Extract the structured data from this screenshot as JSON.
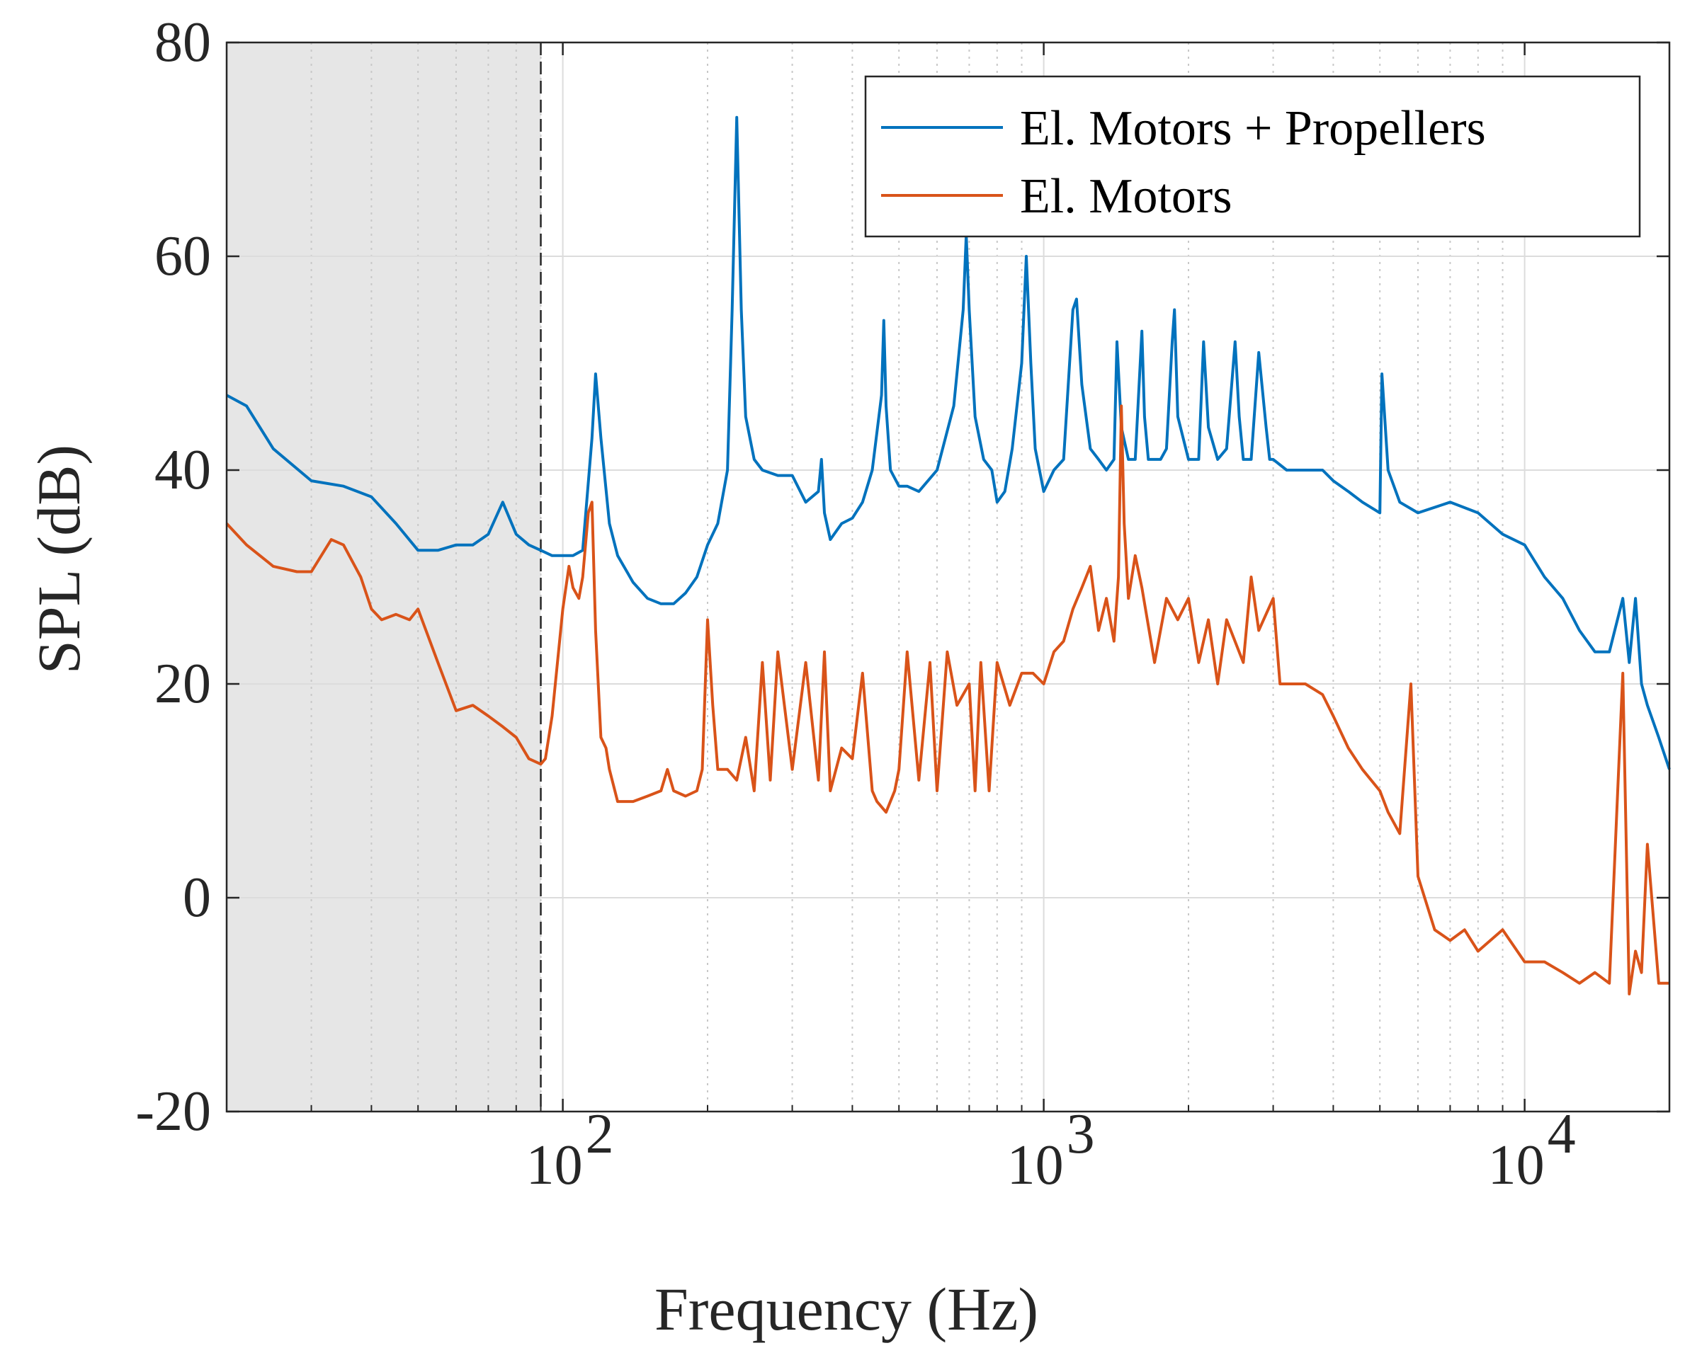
{
  "chart_data": {
    "type": "line",
    "title": "",
    "xlabel": "Frequency (Hz)",
    "ylabel": "SPL (dB)",
    "xscale": "log",
    "xlim": [
      20,
      20000
    ],
    "ylim": [
      -20,
      80
    ],
    "yticks": [
      -20,
      0,
      20,
      40,
      60,
      80
    ],
    "ytick_labels": [
      "-20",
      "0",
      "20",
      "40",
      "60",
      "80"
    ],
    "xticks": [
      {
        "value": 100,
        "base": "10",
        "exp": "2"
      },
      {
        "value": 1000,
        "base": "10",
        "exp": "3"
      },
      {
        "value": 10000,
        "base": "10",
        "exp": "4"
      }
    ],
    "grid": true,
    "shaded_region": {
      "x_from": 20,
      "x_to": 90,
      "color": "#e6e6e6",
      "boundary_style": "dashed"
    },
    "legend": {
      "location": "top-right"
    },
    "series": [
      {
        "name": "El. Motors + Propellers",
        "color": "#0072BD",
        "x": [
          20,
          22,
          25,
          30,
          35,
          40,
          45,
          50,
          55,
          60,
          65,
          70,
          75,
          80,
          85,
          90,
          95,
          100,
          105,
          110,
          115,
          117,
          120,
          125,
          130,
          140,
          150,
          160,
          170,
          180,
          190,
          200,
          210,
          220,
          225,
          230,
          235,
          240,
          250,
          260,
          280,
          300,
          320,
          340,
          345,
          350,
          360,
          380,
          400,
          420,
          440,
          460,
          465,
          470,
          480,
          500,
          520,
          550,
          600,
          650,
          680,
          690,
          700,
          720,
          750,
          780,
          800,
          830,
          860,
          900,
          920,
          940,
          960,
          1000,
          1050,
          1100,
          1150,
          1170,
          1200,
          1250,
          1300,
          1350,
          1400,
          1420,
          1450,
          1500,
          1550,
          1600,
          1620,
          1650,
          1700,
          1750,
          1800,
          1850,
          1870,
          1900,
          2000,
          2100,
          2150,
          2200,
          2300,
          2400,
          2500,
          2550,
          2600,
          2700,
          2800,
          2900,
          2950,
          3000,
          3200,
          3500,
          3800,
          4000,
          4300,
          4600,
          5000,
          5050,
          5200,
          5500,
          6000,
          7000,
          8000,
          9000,
          10000,
          11000,
          12000,
          13000,
          14000,
          15000,
          16000,
          16500,
          17000,
          17500,
          18000,
          19000,
          20000
        ],
        "y": [
          47,
          46,
          42,
          39,
          38.5,
          37.5,
          35,
          32.5,
          32.5,
          33,
          33,
          34,
          37,
          34,
          33,
          32.5,
          32,
          32,
          32,
          32.5,
          43,
          49,
          43,
          35,
          32,
          29.5,
          28,
          27.5,
          27.5,
          28.5,
          30,
          33,
          35,
          40,
          55,
          73,
          55,
          45,
          41,
          40,
          39.5,
          39.5,
          37,
          38,
          41,
          36,
          33.5,
          35,
          35.5,
          37,
          40,
          47,
          54,
          46,
          40,
          38.5,
          38.5,
          38,
          40,
          46,
          55,
          62,
          55,
          45,
          41,
          40,
          37,
          38,
          42,
          50,
          60,
          50,
          42,
          38,
          40,
          41,
          55,
          56,
          48,
          42,
          41,
          40,
          41,
          52,
          44,
          41,
          41,
          53,
          45,
          41,
          41,
          41,
          42,
          52,
          55,
          45,
          41,
          41,
          52,
          44,
          41,
          42,
          52,
          45,
          41,
          41,
          51,
          44,
          41,
          41,
          40,
          40,
          40,
          39,
          38,
          37,
          36,
          49,
          40,
          37,
          36,
          37,
          36,
          34,
          33,
          30,
          28,
          25,
          23,
          23,
          28,
          22,
          28,
          20,
          18,
          15,
          12
        ]
      },
      {
        "name": "El. Motors",
        "color": "#D95319",
        "x": [
          20,
          22,
          25,
          28,
          30,
          33,
          35,
          38,
          40,
          42,
          45,
          48,
          50,
          55,
          60,
          65,
          70,
          75,
          80,
          85,
          90,
          92,
          95,
          100,
          103,
          105,
          108,
          110,
          113,
          115,
          117,
          120,
          123,
          125,
          130,
          135,
          140,
          150,
          160,
          165,
          170,
          180,
          190,
          195,
          200,
          205,
          210,
          220,
          230,
          240,
          250,
          260,
          270,
          280,
          300,
          320,
          340,
          350,
          360,
          380,
          400,
          420,
          440,
          450,
          470,
          490,
          500,
          520,
          550,
          580,
          600,
          630,
          660,
          700,
          720,
          740,
          770,
          800,
          850,
          900,
          950,
          1000,
          1050,
          1100,
          1150,
          1200,
          1250,
          1300,
          1350,
          1400,
          1430,
          1450,
          1470,
          1500,
          1550,
          1600,
          1700,
          1800,
          1900,
          2000,
          2100,
          2200,
          2300,
          2400,
          2600,
          2700,
          2800,
          3000,
          3100,
          3300,
          3500,
          3800,
          4000,
          4300,
          4600,
          5000,
          5200,
          5500,
          5800,
          6000,
          6500,
          7000,
          7500,
          8000,
          9000,
          10000,
          11000,
          12000,
          13000,
          14000,
          15000,
          16000,
          16500,
          17000,
          17500,
          18000,
          19000,
          20000
        ],
        "y": [
          35,
          33,
          31,
          30.5,
          30.5,
          33.5,
          33,
          30,
          27,
          26,
          26.5,
          26,
          27,
          22,
          17.5,
          18,
          17,
          16,
          15,
          13,
          12.5,
          13,
          17,
          27,
          31,
          29,
          28,
          30,
          36,
          37,
          25,
          15,
          14,
          12,
          9,
          9,
          9,
          9.5,
          10,
          12,
          10,
          9.5,
          10,
          12,
          26,
          18,
          12,
          12,
          11,
          15,
          10,
          22,
          11,
          23,
          12,
          22,
          11,
          23,
          10,
          14,
          13,
          21,
          10,
          9,
          8,
          10,
          12,
          23,
          11,
          22,
          10,
          23,
          18,
          20,
          10,
          22,
          10,
          22,
          18,
          21,
          21,
          20,
          23,
          24,
          27,
          29,
          31,
          25,
          28,
          24,
          30,
          46,
          35,
          28,
          32,
          29,
          22,
          28,
          26,
          28,
          22,
          26,
          20,
          26,
          22,
          30,
          25,
          28,
          20,
          20,
          20,
          19,
          17,
          14,
          12,
          10,
          8,
          6,
          20,
          2,
          -3,
          -4,
          -3,
          -5,
          -3,
          -6,
          -6,
          -7,
          -8,
          -7,
          -8,
          21,
          -9,
          -5,
          -7,
          5,
          -8,
          -8
        ]
      }
    ]
  }
}
